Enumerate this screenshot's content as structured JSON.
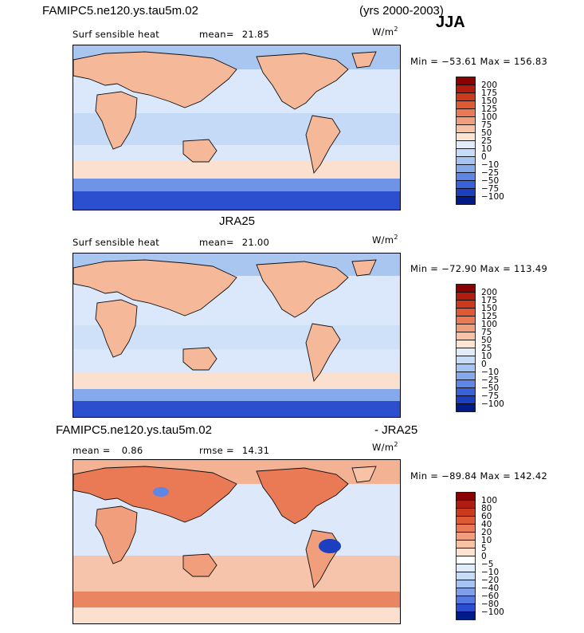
{
  "header": {
    "model": "FAMIPC5.ne120.ys.tau5m.02",
    "years": "(yrs 2000-2003)",
    "season": "JJA"
  },
  "panel1": {
    "variable": "Surf sensible heat",
    "mean_label": "mean=",
    "mean_value": "21.85",
    "units": "W/m",
    "units_exp": "2",
    "min_label": "Min =",
    "min_value": "−53.61",
    "max_label": "Max =",
    "max_value": "156.83"
  },
  "panel2": {
    "title": "JRA25",
    "variable": "Surf sensible heat",
    "mean_label": "mean=",
    "mean_value": "21.00",
    "units": "W/m",
    "units_exp": "2",
    "min_label": "Min =",
    "min_value": "−72.90",
    "max_label": "Max =",
    "max_value": "113.49"
  },
  "panel3": {
    "title_left": "FAMIPC5.ne120.ys.tau5m.02",
    "title_right": "- JRA25",
    "mean_label": "mean =",
    "mean_value": "0.86",
    "rmse_label": "rmse =",
    "rmse_value": "14.31",
    "units": "W/m",
    "units_exp": "2",
    "min_label": "Min =",
    "min_value": "−89.84",
    "max_label": "Max =",
    "max_value": "142.42"
  },
  "chart_data": [
    {
      "type": "heatmap",
      "colorbar": {
        "labels": [
          "200",
          "175",
          "150",
          "125",
          "100",
          "75",
          "50",
          "25",
          "10",
          "0",
          "−10",
          "−25",
          "−50",
          "−75",
          "−100"
        ],
        "colors": [
          "#8b0000",
          "#b01c10",
          "#cc3a1e",
          "#de5a34",
          "#e97a55",
          "#f19e7c",
          "#f8c2a6",
          "#fde3d2",
          "#e1ecfb",
          "#c6dcf8",
          "#a6c4f2",
          "#86a9ec",
          "#5f86e4",
          "#3a62d8",
          "#1c3fc0",
          "#001a8a"
        ]
      }
    },
    {
      "type": "heatmap",
      "colorbar": {
        "labels": [
          "200",
          "175",
          "150",
          "125",
          "100",
          "75",
          "50",
          "25",
          "10",
          "0",
          "−10",
          "−25",
          "−50",
          "−75",
          "−100"
        ],
        "colors": [
          "#8b0000",
          "#b01c10",
          "#cc3a1e",
          "#de5a34",
          "#e97a55",
          "#f19e7c",
          "#f8c2a6",
          "#fde3d2",
          "#e1ecfb",
          "#c6dcf8",
          "#a6c4f2",
          "#86a9ec",
          "#5f86e4",
          "#3a62d8",
          "#1c3fc0",
          "#001a8a"
        ]
      }
    },
    {
      "type": "heatmap",
      "colorbar": {
        "labels": [
          "100",
          "80",
          "60",
          "40",
          "20",
          "10",
          "5",
          "0",
          "−5",
          "−10",
          "−20",
          "−40",
          "−60",
          "−80",
          "−100"
        ],
        "colors": [
          "#8b0000",
          "#b01c10",
          "#cc3a1e",
          "#de5a34",
          "#e97a55",
          "#f19e7c",
          "#f8c2a6",
          "#fde3d2",
          "#ffffff",
          "#e1ecfb",
          "#c6dcf8",
          "#a6c4f2",
          "#7f9fea",
          "#5479e0",
          "#2b4ed0",
          "#001a8a"
        ]
      }
    }
  ]
}
